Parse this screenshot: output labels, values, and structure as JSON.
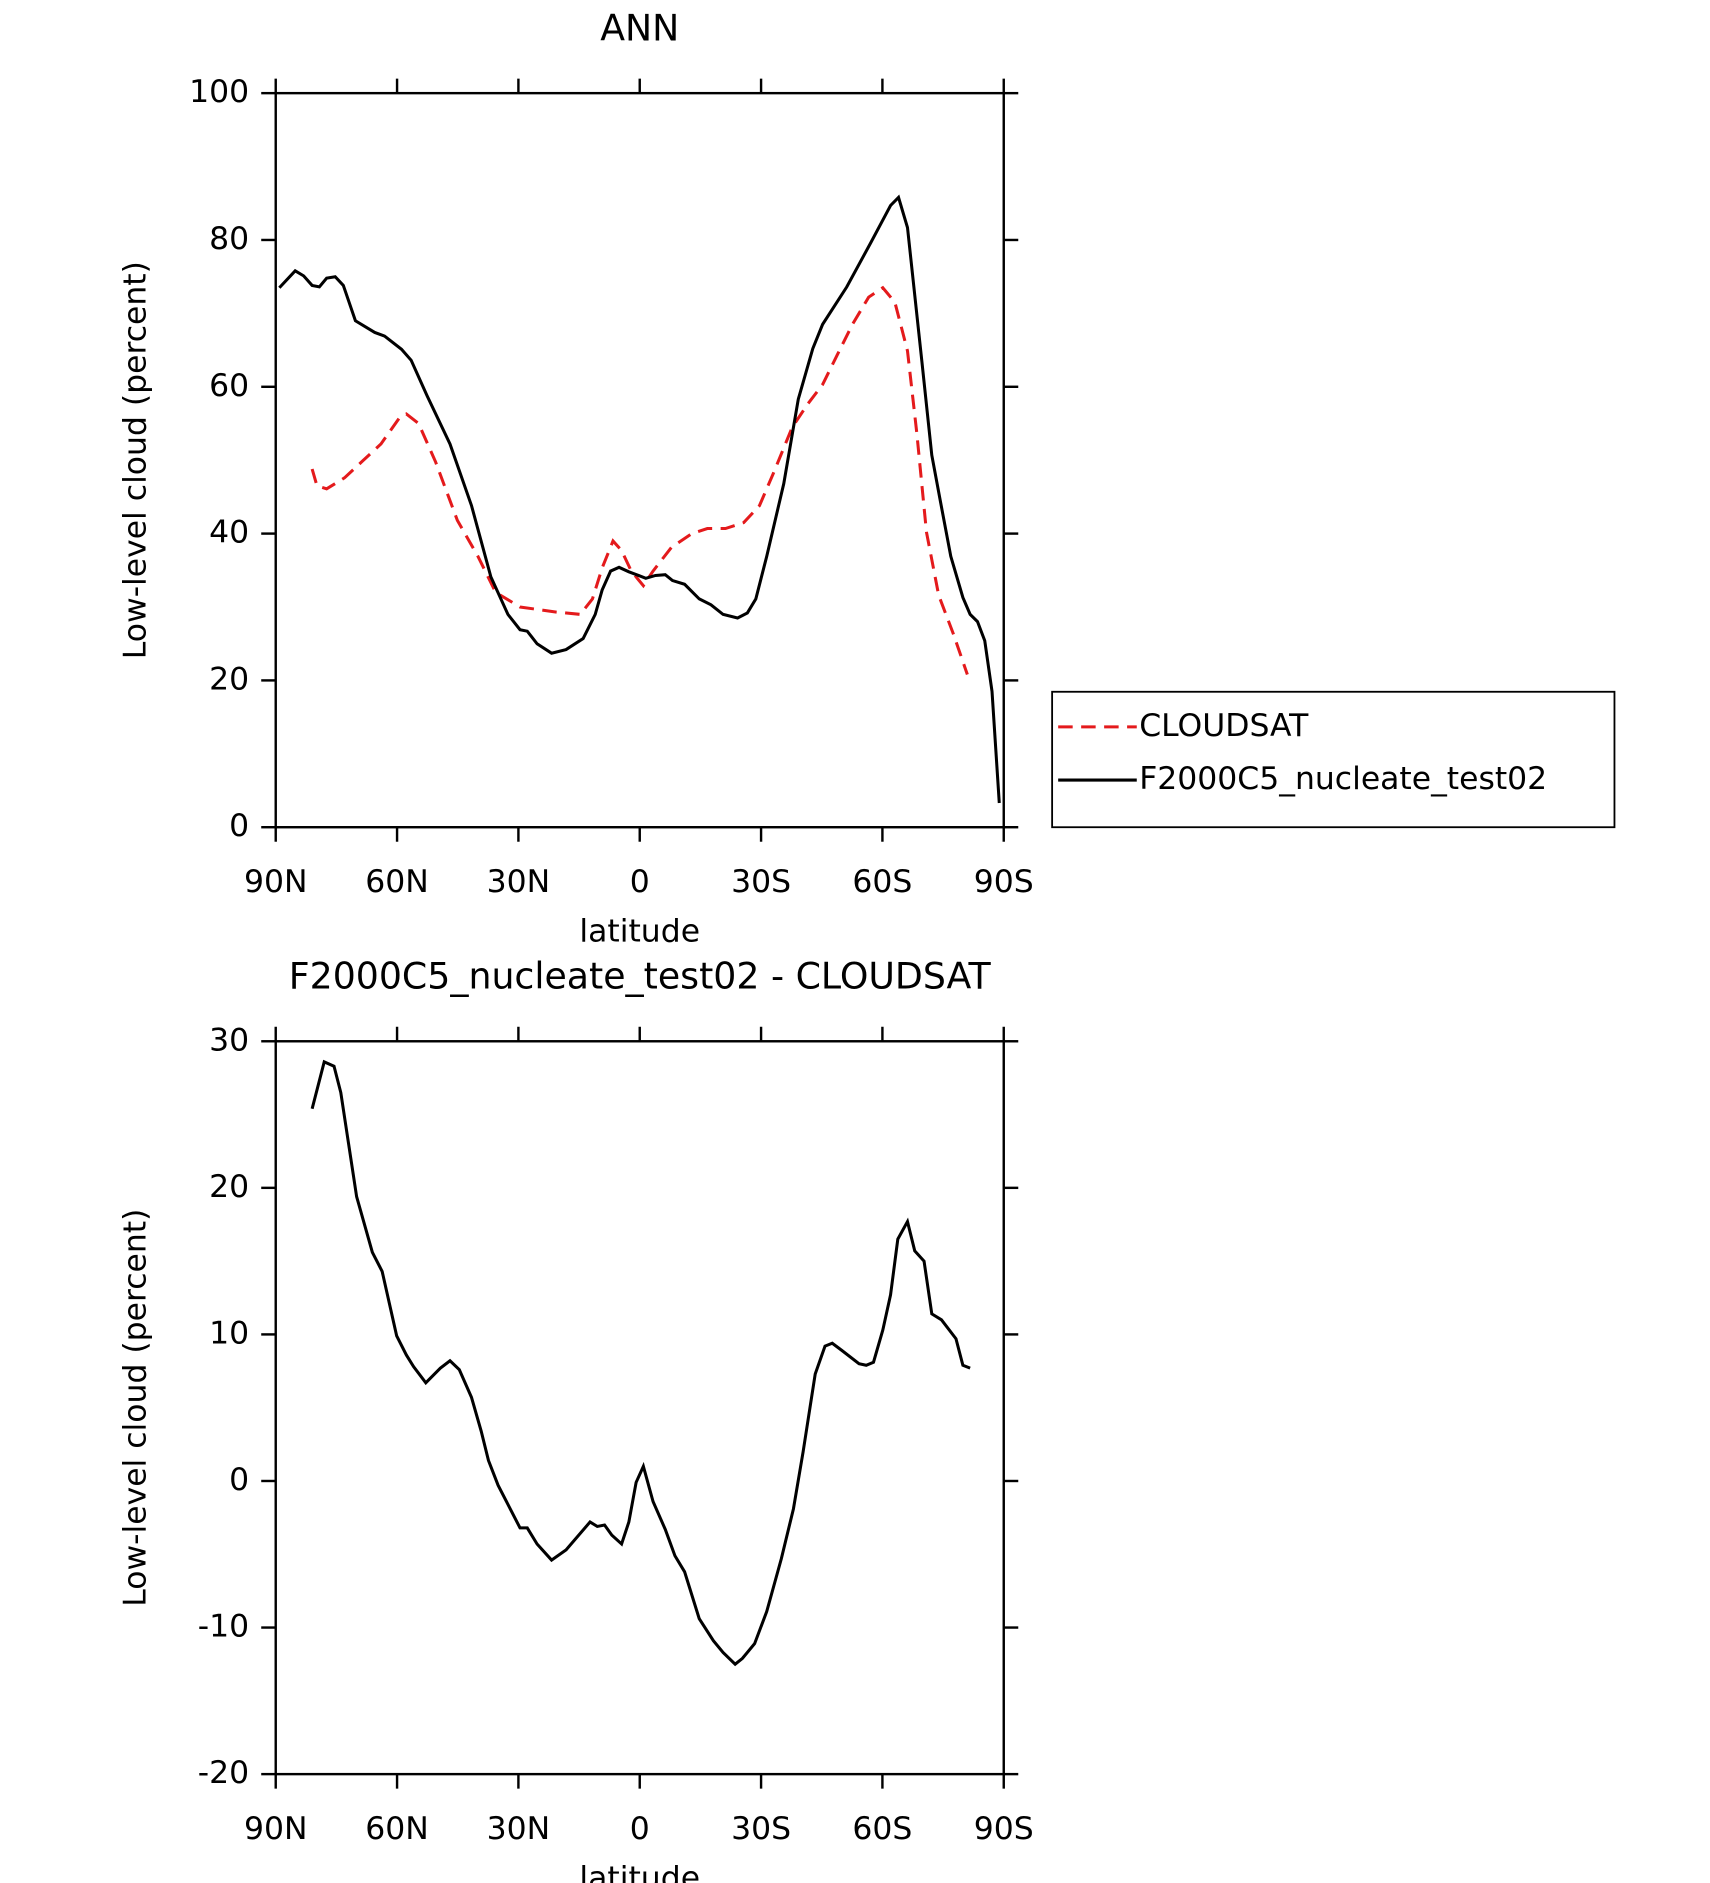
{
  "chart_data": [
    {
      "type": "line",
      "title": "ANN",
      "xlabel": "latitude",
      "ylabel": "Low-level cloud (percent)",
      "xlim": [
        90,
        -90
      ],
      "xticks": [
        {
          "value": 90,
          "label": "90N"
        },
        {
          "value": 60,
          "label": "60N"
        },
        {
          "value": 30,
          "label": "30N"
        },
        0,
        {
          "value": -30,
          "label": "30S"
        },
        {
          "value": -60,
          "label": "60S"
        },
        {
          "value": -90,
          "label": "90S"
        }
      ],
      "ylim": [
        0,
        100
      ],
      "yticks": [
        0,
        20,
        40,
        60,
        80,
        100
      ],
      "legend": "right",
      "series": [
        {
          "name": "CLOUDSAT",
          "color": "#e41a1c",
          "linestyle": "dashed",
          "x": [
            81,
            79.8,
            77.4,
            73,
            68.5,
            64,
            59.5,
            57.7,
            54.7,
            50.5,
            45.1,
            40,
            35.6,
            29.6,
            20.6,
            14.7,
            11.7,
            9.3,
            6.6,
            4.5,
            2.1,
            -0.9,
            -3.3,
            -7.8,
            -12.9,
            -16.7,
            -21.2,
            -25.7,
            -29.6,
            -33.2,
            -37.7,
            -41.6,
            -45.2,
            -48.8,
            -52.6,
            -56.6,
            -60.1,
            -63.1,
            -66.2,
            -68.5,
            -70.9,
            -73.9,
            -77.5,
            -81
          ],
          "values": [
            48.8,
            46.5,
            46.1,
            47.6,
            49.9,
            52.2,
            55.7,
            56.3,
            55,
            49.8,
            41.8,
            36.9,
            32,
            30,
            29.3,
            29,
            31.1,
            35.3,
            39,
            37.7,
            34.9,
            32.9,
            34.9,
            38.1,
            40,
            40.7,
            40.7,
            41.5,
            43.8,
            48.4,
            54.5,
            57.7,
            60.3,
            64.3,
            68.5,
            72.2,
            73.5,
            71.5,
            64.9,
            53.7,
            40.2,
            31.6,
            26.4,
            20.8
          ]
        },
        {
          "name": "F2000C5_nucleate_test02",
          "color": "#000000",
          "linestyle": "solid",
          "x": [
            89.1,
            85.2,
            83.1,
            81,
            79.2,
            77.4,
            75.3,
            73.3,
            70.3,
            65.5,
            63.1,
            58.9,
            56.5,
            52.6,
            46.9,
            41.6,
            36.8,
            32.6,
            29.6,
            27.8,
            25.4,
            21.8,
            18.2,
            14,
            11,
            9.3,
            7.2,
            5.1,
            2.7,
            0.3,
            -1.5,
            -3.9,
            -6.3,
            -8.1,
            -11.1,
            -14.7,
            -17.6,
            -20.6,
            -24.2,
            -26.6,
            -28.7,
            -31.4,
            -35.6,
            -39.2,
            -42.8,
            -45.2,
            -51.2,
            -57.2,
            -62,
            -64,
            -66.2,
            -69.8,
            -72.2,
            -74.3,
            -76.9,
            -79.9,
            -81.7,
            -83.5,
            -85.3,
            -87.1,
            -88.9
          ],
          "values": [
            73.5,
            75.8,
            75.1,
            73.8,
            73.6,
            74.8,
            75,
            73.8,
            69,
            67.4,
            66.9,
            65.1,
            63.6,
            58.8,
            52.2,
            43.8,
            34.1,
            29,
            26.9,
            26.7,
            25,
            23.7,
            24.2,
            25.7,
            29,
            32.3,
            34.9,
            35.4,
            34.8,
            34.3,
            33.9,
            34.3,
            34.4,
            33.6,
            33.1,
            31.1,
            30.3,
            29,
            28.5,
            29.2,
            31.1,
            36.9,
            46.8,
            58.3,
            65.2,
            68.5,
            73.6,
            79.7,
            84.7,
            85.8,
            81.7,
            63.3,
            50.7,
            44.5,
            36.9,
            31.3,
            29,
            28,
            25.4,
            18.5,
            3.3
          ]
        }
      ]
    },
    {
      "type": "line",
      "title": "F2000C5_nucleate_test02 - CLOUDSAT",
      "xlabel": "latitude",
      "ylabel": "Low-level cloud (percent)",
      "xlim": [
        90,
        -90
      ],
      "xticks": [
        {
          "value": 90,
          "label": "90N"
        },
        {
          "value": 60,
          "label": "60N"
        },
        {
          "value": 30,
          "label": "30N"
        },
        0,
        {
          "value": -30,
          "label": "30S"
        },
        {
          "value": -60,
          "label": "60S"
        },
        {
          "value": -90,
          "label": "90S"
        }
      ],
      "ylim": [
        -20,
        30
      ],
      "yticks": [
        -20,
        -10,
        0,
        10,
        20,
        30
      ],
      "series": [
        {
          "color": "#000000",
          "linestyle": "solid",
          "x": [
            81,
            78,
            75.6,
            73.9,
            70,
            66.1,
            63.7,
            60.1,
            57.7,
            55.9,
            52.9,
            49.3,
            46.9,
            44.6,
            41.6,
            39.2,
            37.4,
            35,
            29.6,
            27.8,
            25.4,
            21.8,
            18.2,
            12.3,
            10.5,
            8.7,
            6.9,
            4.5,
            2.7,
            0.9,
            -0.9,
            -3.3,
            -6.3,
            -8.7,
            -11.1,
            -14.7,
            -18.2,
            -20.6,
            -23.6,
            -25.4,
            -28.4,
            -31.4,
            -35,
            -38,
            -40.4,
            -43.4,
            -45.8,
            -47.6,
            -50,
            -54.2,
            -56,
            -57.8,
            -60.1,
            -62,
            -63.8,
            -66.2,
            -68,
            -70.3,
            -72.2,
            -74.6,
            -78.2,
            -79.9,
            -81.7
          ],
          "values": [
            25.4,
            28.6,
            28.3,
            26.5,
            19.4,
            15.6,
            14.3,
            9.9,
            8.6,
            7.8,
            6.7,
            7.7,
            8.2,
            7.6,
            5.7,
            3.4,
            1.4,
            -0.3,
            -3.2,
            -3.2,
            -4.3,
            -5.4,
            -4.7,
            -2.8,
            -3.1,
            -3,
            -3.7,
            -4.3,
            -2.8,
            -0.1,
            1,
            -1.4,
            -3.3,
            -5.1,
            -6.2,
            -9.4,
            -10.9,
            -11.7,
            -12.5,
            -12.1,
            -11.1,
            -8.9,
            -5.3,
            -1.9,
            2,
            7.3,
            9.2,
            9.4,
            8.9,
            8,
            7.9,
            8.1,
            10.3,
            12.7,
            16.5,
            17.7,
            15.7,
            15,
            11.4,
            11,
            9.7,
            7.9,
            7.7
          ]
        }
      ]
    }
  ]
}
